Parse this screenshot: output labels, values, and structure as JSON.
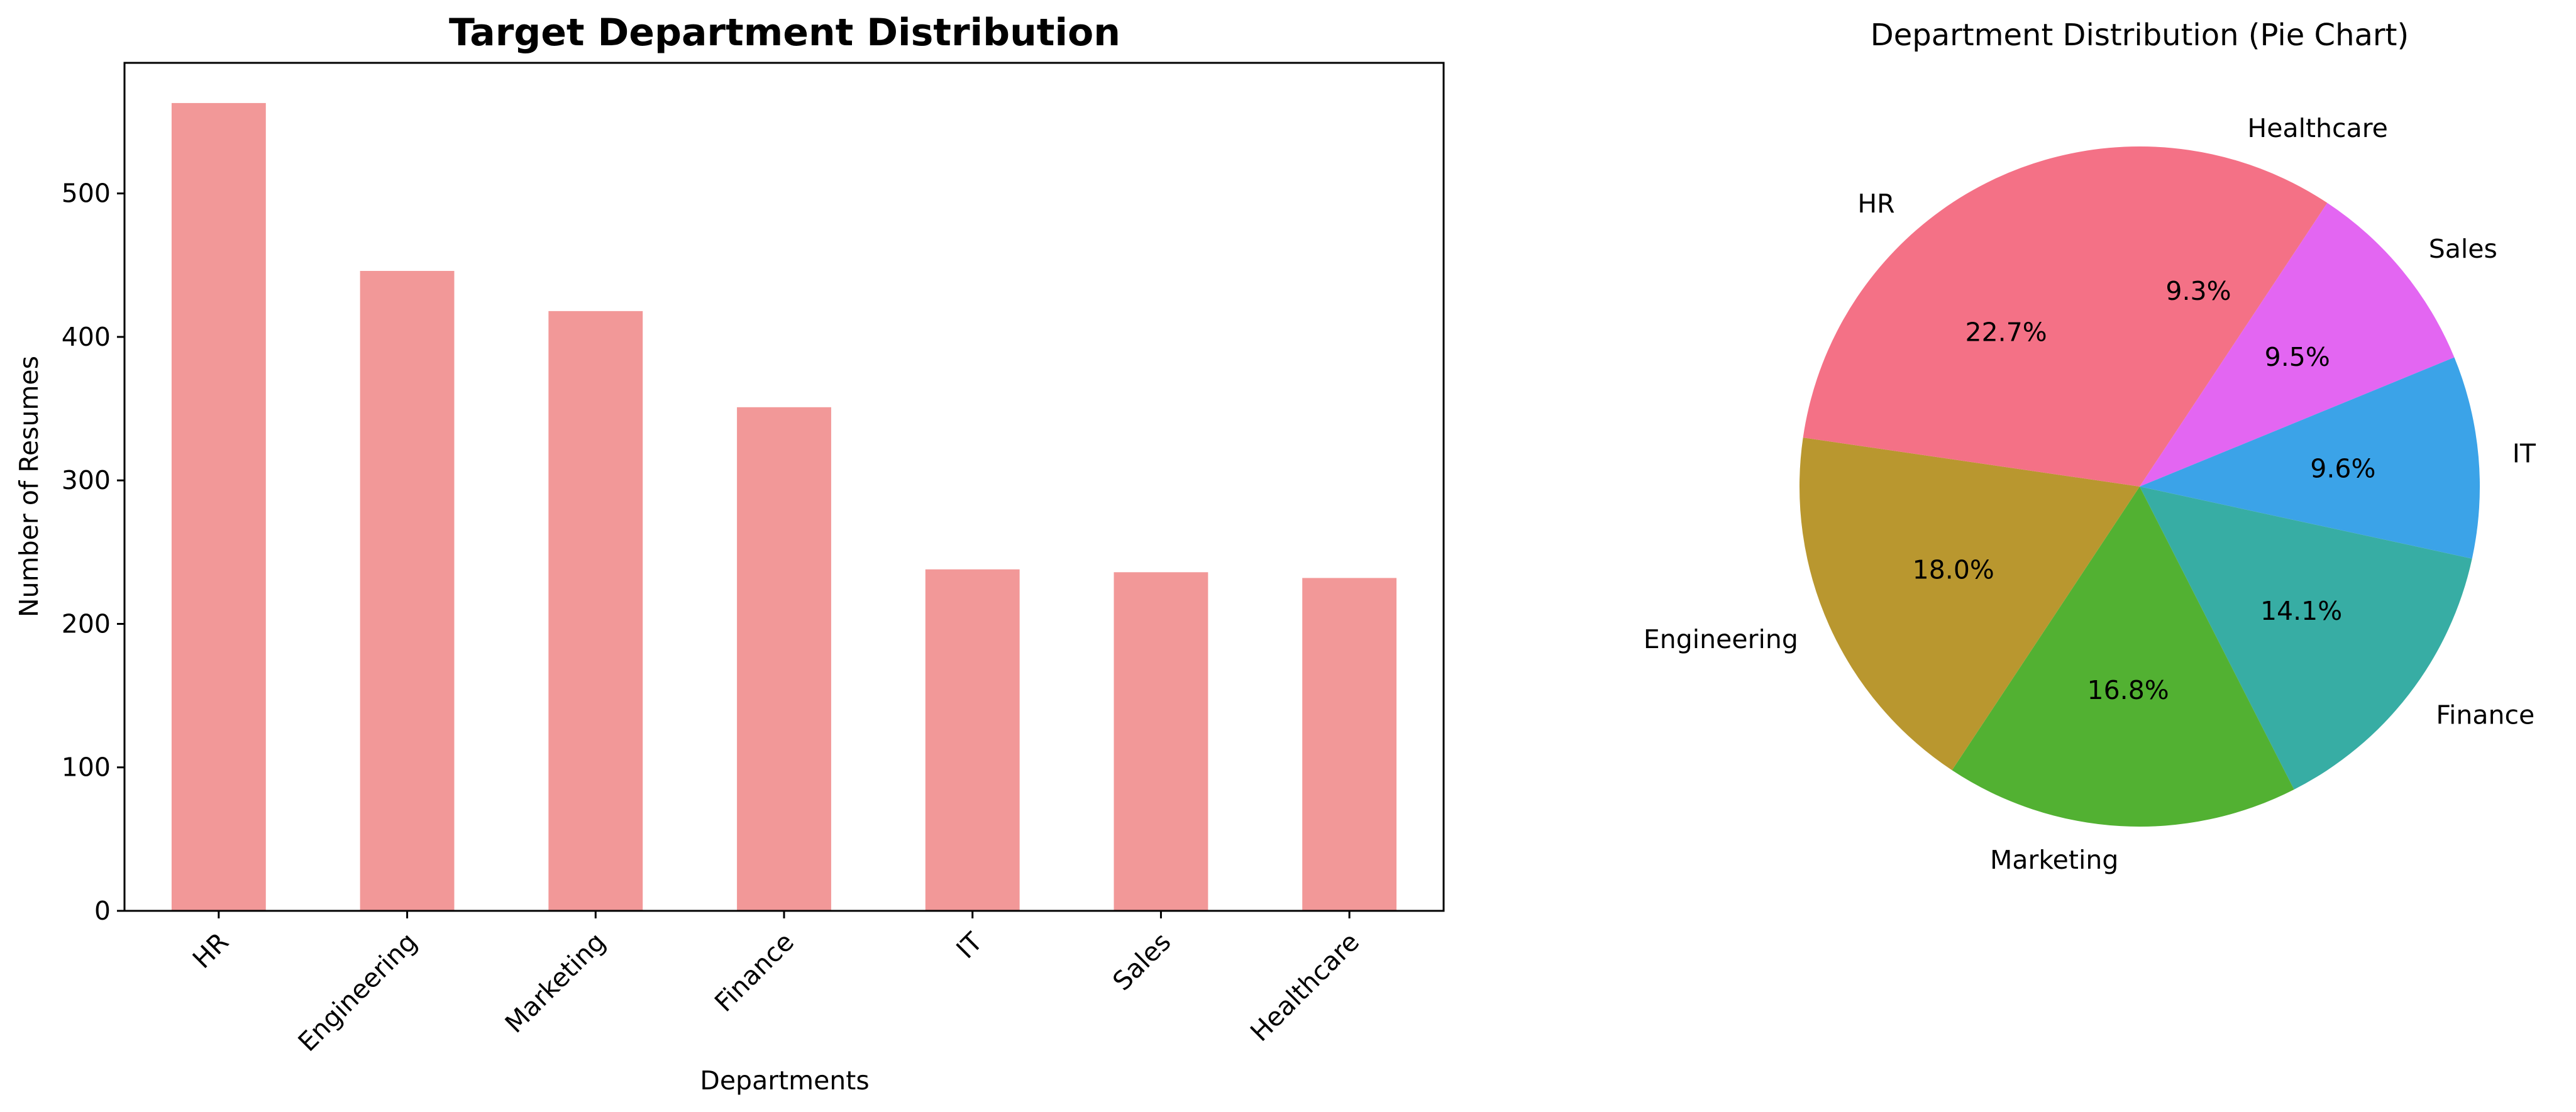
{
  "chart_data": [
    {
      "type": "bar",
      "title": "Target Department Distribution",
      "xlabel": "Departments",
      "ylabel": "Number of Resumes",
      "categories": [
        "HR",
        "Engineering",
        "Marketing",
        "Finance",
        "IT",
        "Sales",
        "Healthcare"
      ],
      "values": [
        563,
        446,
        418,
        351,
        238,
        236,
        232
      ],
      "ylim": [
        0,
        591
      ],
      "yticks": [
        0,
        100,
        200,
        300,
        400,
        500
      ],
      "bar_color": "#f29898",
      "grid": false,
      "legend": "none"
    },
    {
      "type": "pie",
      "title": "Department Distribution (Pie Chart)",
      "labels": [
        "Healthcare",
        "Sales",
        "IT",
        "Finance",
        "Marketing",
        "Engineering",
        "HR"
      ],
      "values": [
        9.3,
        9.5,
        9.6,
        14.1,
        16.8,
        18.0,
        22.7
      ],
      "pct_labels": [
        "9.3%",
        "9.5%",
        "9.6%",
        "14.1%",
        "16.8%",
        "18.0%",
        "22.7%"
      ],
      "colors": [
        "#f47186",
        "#e366f2",
        "#3ba3e8",
        "#37ada4",
        "#52b132",
        "#b9972f",
        "#f47186"
      ],
      "start_angle_deg": 90,
      "direction": "clockwise"
    }
  ]
}
